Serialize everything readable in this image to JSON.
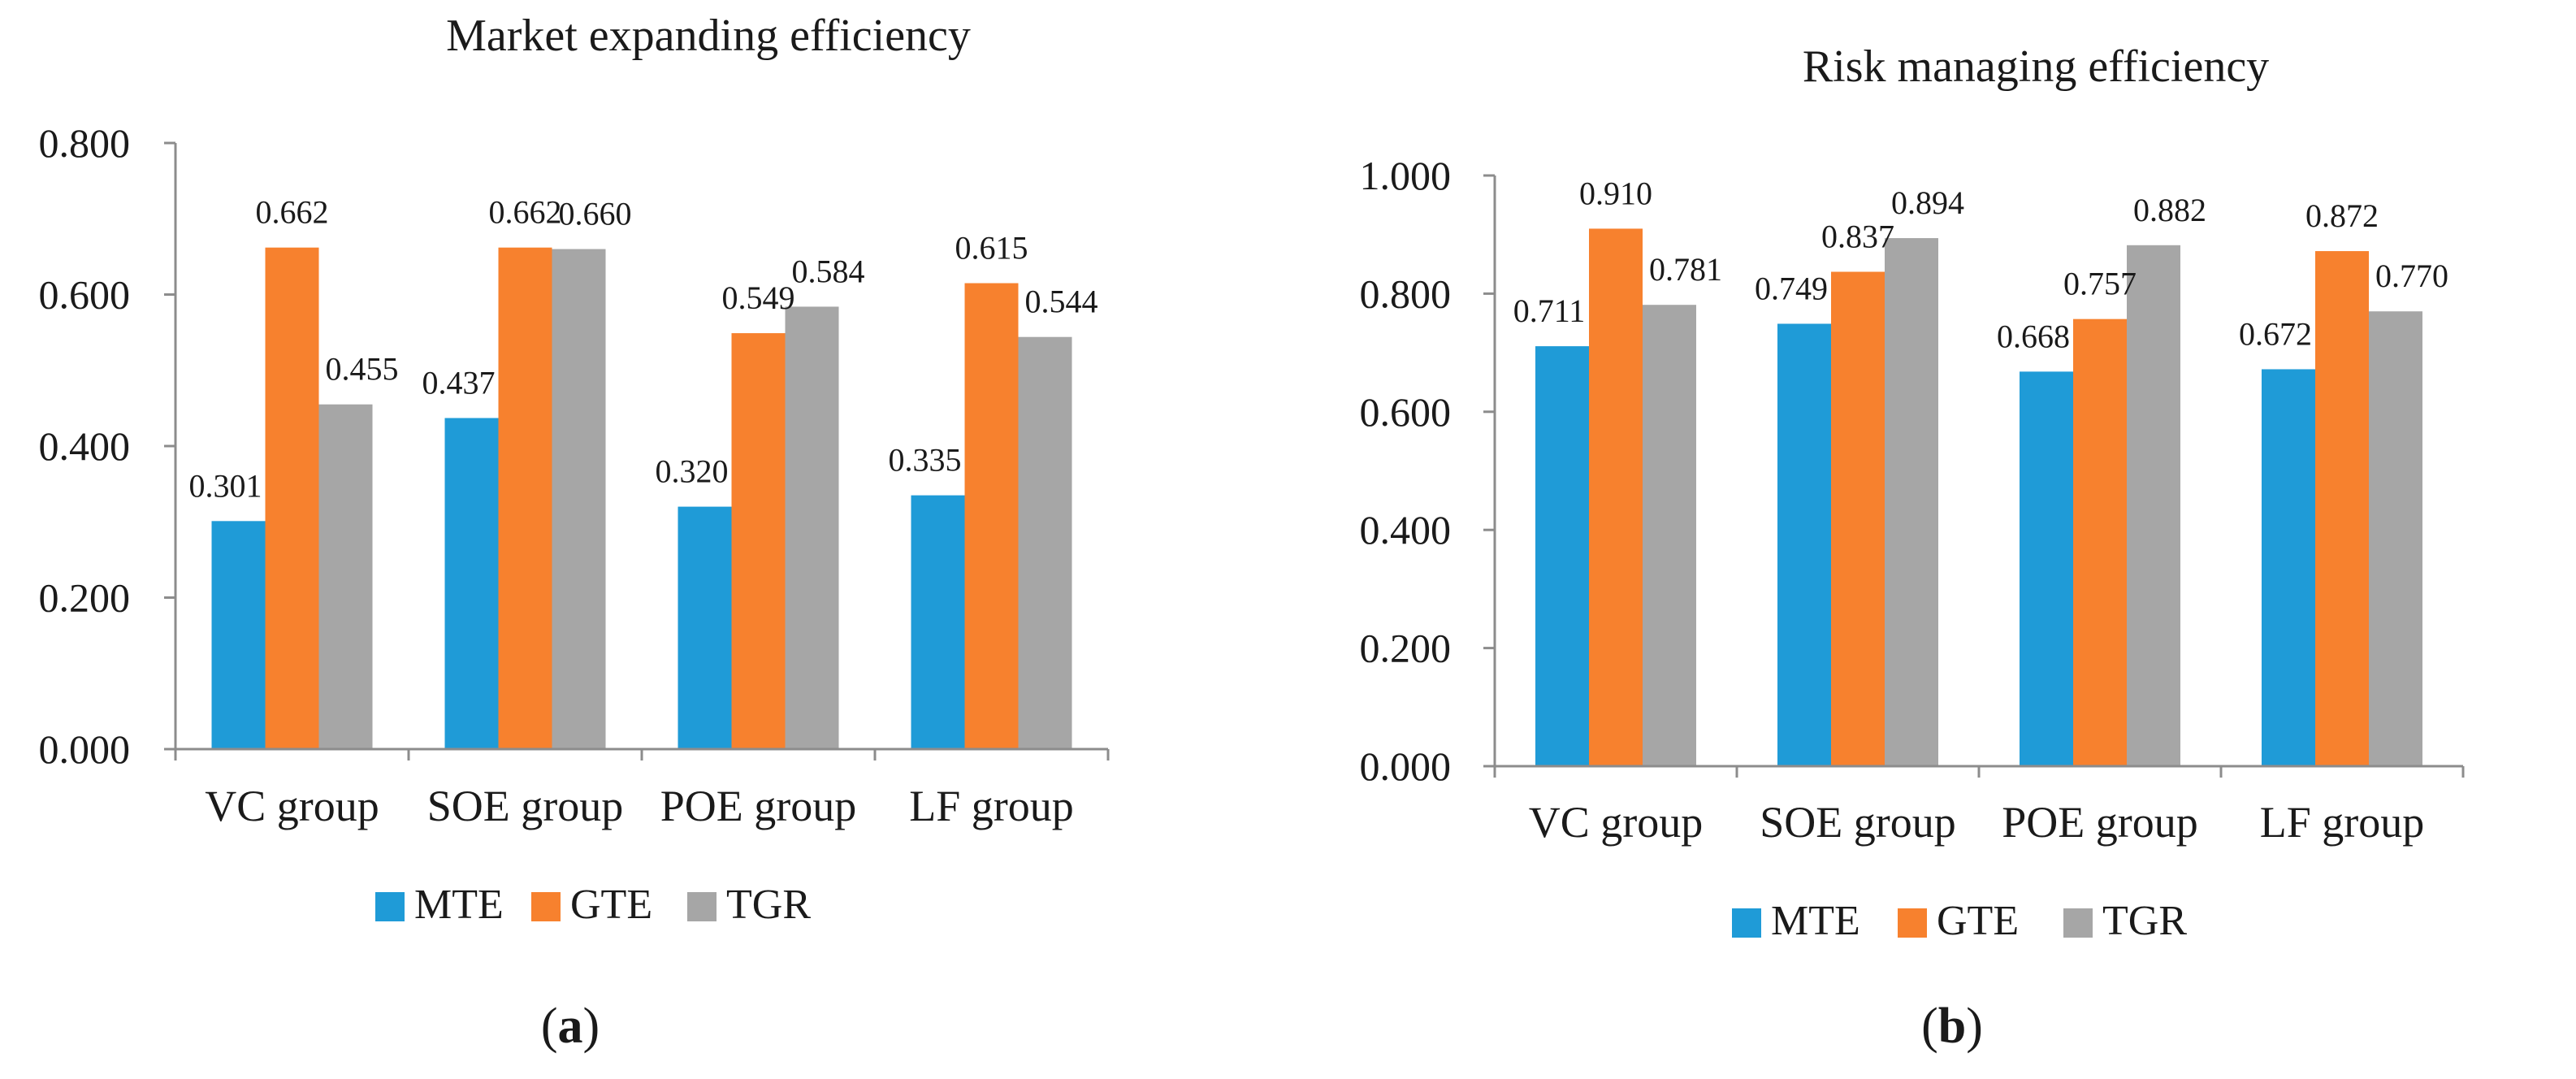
{
  "colors": {
    "MTE": "#1f9bd7",
    "GTE": "#f7812e",
    "TGR": "#a6a6a6",
    "axis": "#8c8c8c",
    "text": "#1a1a1a"
  },
  "chart_data": [
    {
      "type": "bar",
      "title": "Market expanding efficiency",
      "panel": "a",
      "categories": [
        "VC group",
        "SOE group",
        "POE group",
        "LF group"
      ],
      "series": [
        {
          "name": "MTE",
          "values": [
            0.301,
            0.437,
            0.32,
            0.335
          ],
          "labels": [
            "0.301",
            "0.437",
            "0.320",
            "0.335"
          ]
        },
        {
          "name": "GTE",
          "values": [
            0.662,
            0.662,
            0.549,
            0.615
          ],
          "labels": [
            "0.662",
            "0.662",
            "0.549",
            "0.615"
          ]
        },
        {
          "name": "TGR",
          "values": [
            0.455,
            0.66,
            0.584,
            0.544
          ],
          "labels": [
            "0.455",
            "0.660",
            "0.584",
            "0.544"
          ]
        }
      ],
      "ylim": [
        0,
        0.8
      ],
      "yticks": [
        0,
        0.2,
        0.4,
        0.6,
        0.8
      ],
      "ytick_labels": [
        "0.000",
        "0.200",
        "0.400",
        "0.600",
        "0.800"
      ],
      "legend": "bottom",
      "grid": false
    },
    {
      "type": "bar",
      "title": "Risk managing  efficiency",
      "panel": "b",
      "categories": [
        "VC group",
        "SOE group",
        "POE group",
        "LF group"
      ],
      "series": [
        {
          "name": "MTE",
          "values": [
            0.711,
            0.749,
            0.668,
            0.672
          ],
          "labels": [
            "0.711",
            "0.749",
            "0.668",
            "0.672"
          ]
        },
        {
          "name": "GTE",
          "values": [
            0.91,
            0.837,
            0.757,
            0.872
          ],
          "labels": [
            "0.910",
            "0.837",
            "0.757",
            "0.872"
          ]
        },
        {
          "name": "TGR",
          "values": [
            0.781,
            0.894,
            0.882,
            0.77
          ],
          "labels": [
            "0.781",
            "0.894",
            "0.882",
            "0.770"
          ]
        }
      ],
      "ylim": [
        0,
        1.0
      ],
      "yticks": [
        0,
        0.2,
        0.4,
        0.6,
        0.8,
        1.0
      ],
      "ytick_labels": [
        "0.000",
        "0.200",
        "0.400",
        "0.600",
        "0.800",
        "1.000"
      ],
      "legend": "bottom",
      "grid": false
    }
  ]
}
